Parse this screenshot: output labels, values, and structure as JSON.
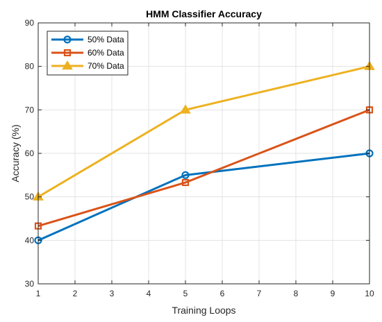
{
  "chart_data": {
    "type": "line",
    "title": "HMM Classifier Accuracy",
    "xlabel": "Training Loops",
    "ylabel": "Accuracy (%)",
    "xlim": [
      1,
      10
    ],
    "ylim": [
      30,
      90
    ],
    "xticks": [
      1,
      2,
      3,
      4,
      5,
      6,
      7,
      8,
      9,
      10
    ],
    "yticks": [
      30,
      40,
      50,
      60,
      70,
      80,
      90
    ],
    "grid": true,
    "legend_position": "top-left",
    "series": [
      {
        "name": "50% Data",
        "x": [
          1,
          5,
          10
        ],
        "values": [
          40,
          55,
          60
        ],
        "color": "#0072BD",
        "marker": "circle"
      },
      {
        "name": "60% Data",
        "x": [
          1,
          5,
          10
        ],
        "values": [
          43.3,
          53.3,
          70
        ],
        "color": "#D95319",
        "marker": "square"
      },
      {
        "name": "70% Data",
        "x": [
          1,
          5,
          10
        ],
        "values": [
          50,
          70,
          80
        ],
        "color": "#EDB120",
        "marker": "triangle"
      }
    ]
  }
}
